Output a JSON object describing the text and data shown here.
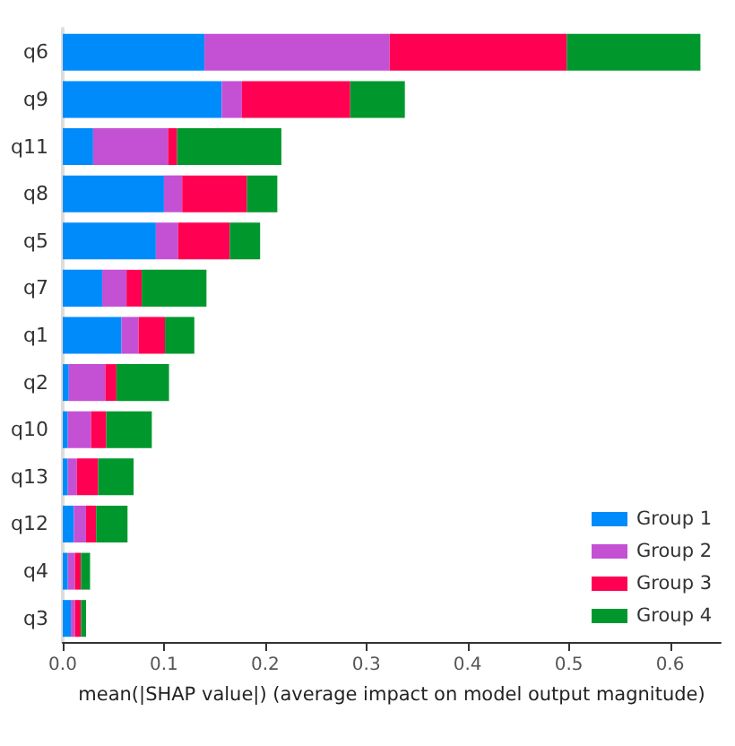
{
  "chart_data": {
    "type": "bar",
    "orientation": "horizontal",
    "stacked": true,
    "xlabel": "mean(|SHAP value|) (average impact on model output magnitude)",
    "categories": [
      "q6",
      "q9",
      "q11",
      "q8",
      "q5",
      "q7",
      "q1",
      "q2",
      "q10",
      "q13",
      "q12",
      "q4",
      "q3"
    ],
    "series": [
      {
        "name": "Group 1",
        "color": "#008bfb",
        "values": [
          0.14,
          0.157,
          0.03,
          0.1,
          0.092,
          0.039,
          0.058,
          0.006,
          0.005,
          0.005,
          0.011,
          0.005,
          0.008
        ]
      },
      {
        "name": "Group 2",
        "color": "#c450d4",
        "values": [
          0.183,
          0.02,
          0.074,
          0.018,
          0.022,
          0.024,
          0.017,
          0.036,
          0.023,
          0.009,
          0.012,
          0.007,
          0.004
        ]
      },
      {
        "name": "Group 3",
        "color": "#ff0052",
        "values": [
          0.175,
          0.107,
          0.009,
          0.064,
          0.051,
          0.015,
          0.026,
          0.011,
          0.015,
          0.021,
          0.01,
          0.006,
          0.006
        ]
      },
      {
        "name": "Group 4",
        "color": "#00982d",
        "values": [
          0.132,
          0.054,
          0.103,
          0.03,
          0.03,
          0.064,
          0.029,
          0.052,
          0.045,
          0.035,
          0.031,
          0.009,
          0.005
        ]
      }
    ],
    "xlim": [
      0,
      0.65
    ],
    "xticks": [
      {
        "value": 0,
        "label": "0.0"
      },
      {
        "value": 0.1,
        "label": "0.1"
      },
      {
        "value": 0.2,
        "label": "0.2"
      },
      {
        "value": 0.3,
        "label": "0.3"
      },
      {
        "value": 0.4,
        "label": "0.4"
      },
      {
        "value": 0.5,
        "label": "0.5"
      },
      {
        "value": 0.6,
        "label": "0.6"
      }
    ],
    "grid": false,
    "legend": "bottom right"
  }
}
